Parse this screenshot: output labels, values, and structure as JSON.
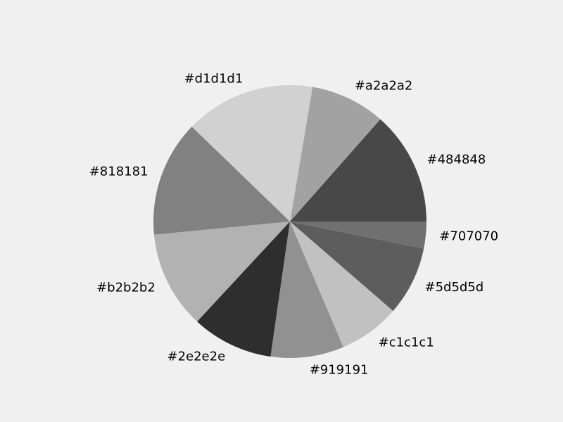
{
  "chart_data": {
    "type": "pie",
    "title": "",
    "start_angle_deg": 0,
    "direction": "counterclockwise",
    "labels": [
      "#484848",
      "#a2a2a2",
      "#d1d1d1",
      "#818181",
      "#b2b2b2",
      "#2e2e2e",
      "#919191",
      "#c1c1c1",
      "#5d5d5d",
      "#707070"
    ],
    "values": [
      14.0,
      9.2,
      16.0,
      14.3,
      12.0,
      10.0,
      9.0,
      7.5,
      8.5,
      3.3
    ],
    "colors": [
      "#484848",
      "#a2a2a2",
      "#d1d1d1",
      "#818181",
      "#b2b2b2",
      "#2e2e2e",
      "#919191",
      "#c1c1c1",
      "#5d5d5d",
      "#707070"
    ],
    "background": "#f0f0f0",
    "legend": "none"
  }
}
